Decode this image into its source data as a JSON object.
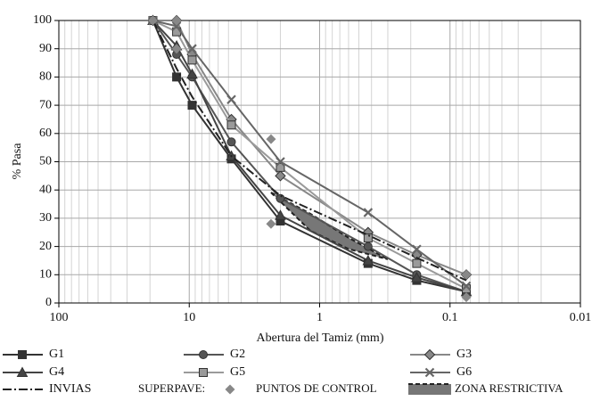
{
  "chart_data": {
    "type": "line",
    "x_label": "Abertura del Tamiz (mm)",
    "y_label": "% Pasa",
    "xlim": [
      100,
      0.01
    ],
    "xticks": [
      100,
      10,
      1,
      0.1,
      0.01
    ],
    "x_log": true,
    "x_minor_grid": true,
    "ylim": [
      0,
      100
    ],
    "yticks": [
      0,
      10,
      20,
      30,
      40,
      50,
      60,
      70,
      80,
      90,
      100
    ],
    "grid": true,
    "x": [
      19,
      12.5,
      9.5,
      4.75,
      2.0,
      0.425,
      0.18,
      0.075
    ],
    "series": [
      {
        "name": "G1",
        "color": "#333333",
        "marker": "square",
        "values": [
          100,
          80,
          70,
          51,
          29,
          14,
          8,
          4
        ]
      },
      {
        "name": "G2",
        "color": "#555555",
        "marker": "circle",
        "values": [
          100,
          88,
          80,
          57,
          37,
          20,
          10,
          4
        ]
      },
      {
        "name": "G3",
        "color": "#888888",
        "marker": "diamond",
        "values": [
          100,
          100,
          88,
          65,
          45,
          25,
          17,
          10
        ]
      },
      {
        "name": "G4",
        "color": "#444444",
        "marker": "triangle",
        "values": [
          100,
          91,
          81,
          52,
          31,
          15,
          9,
          4
        ]
      },
      {
        "name": "G5",
        "color": "#9a9a9a",
        "marker": "square",
        "values": [
          100,
          96,
          86,
          63,
          48,
          23,
          14,
          5
        ]
      },
      {
        "name": "G6",
        "color": "#666666",
        "marker": "x",
        "values": [
          100,
          98,
          90,
          72,
          50,
          32,
          19,
          6
        ]
      },
      {
        "name": "INVIAS",
        "color": "#222222",
        "marker": "none",
        "dash": "10 3 2 3",
        "values": [
          100,
          83,
          73,
          52,
          38,
          24,
          16,
          8
        ]
      }
    ],
    "superpave_label": "SUPERPAVE:",
    "control_points": {
      "name": "PUNTOS DE CONTROL",
      "color": "#888888",
      "x": [
        19,
        12.5,
        12.5,
        2.36,
        2.36,
        0.075,
        0.075
      ],
      "values": [
        100,
        100,
        90,
        58,
        28,
        10,
        2
      ]
    },
    "restricted_zone": {
      "name": "ZONA RESTRICTIVA",
      "color": "#777777",
      "x": [
        2.36,
        1.18,
        0.6,
        0.3
      ],
      "upper": [
        39.1,
        31.6,
        23.1,
        15.5
      ],
      "lower": [
        39.1,
        25.6,
        19.1,
        15.5
      ]
    }
  }
}
